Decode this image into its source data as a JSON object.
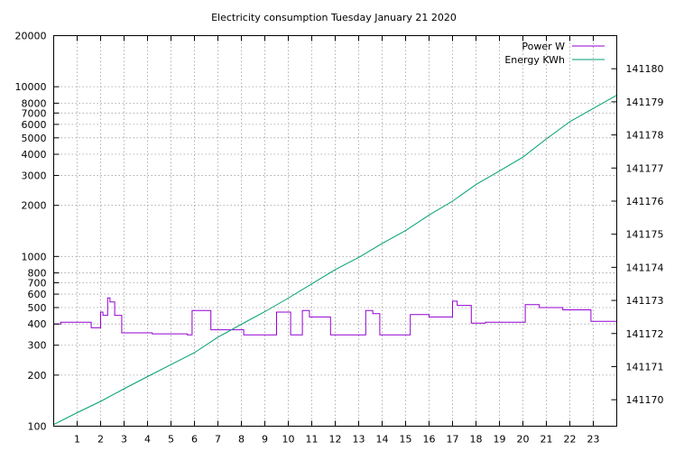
{
  "chart_data": {
    "type": "line",
    "title": "Electricity consumption Tuesday January 21 2020",
    "xlim": [
      0,
      24
    ],
    "x_ticks": [
      1,
      2,
      3,
      4,
      5,
      6,
      7,
      8,
      9,
      10,
      11,
      12,
      13,
      14,
      15,
      16,
      17,
      18,
      19,
      20,
      21,
      22,
      23
    ],
    "y_left": {
      "scale": "log",
      "range": [
        100,
        20000
      ],
      "ticks": [
        100,
        200,
        300,
        400,
        500,
        600,
        700,
        800,
        1000,
        2000,
        3000,
        4000,
        5000,
        6000,
        7000,
        8000,
        10000,
        20000
      ]
    },
    "y_right": {
      "scale": "linear",
      "range": [
        141169.2,
        141181.0
      ],
      "ticks": [
        141170,
        141171,
        141172,
        141173,
        141174,
        141175,
        141176,
        141177,
        141178,
        141179,
        141180
      ]
    },
    "grid": true,
    "legend_position": "top-right",
    "series": [
      {
        "name": "Power W",
        "axis": "left",
        "color": "#9400d3",
        "step": true,
        "x": [
          0,
          0.3,
          1.6,
          2.0,
          2.1,
          2.3,
          2.4,
          2.6,
          2.9,
          4.2,
          5.7,
          5.9,
          6.7,
          8.1,
          9.5,
          10.1,
          10.6,
          10.9,
          11.8,
          12.2,
          13.3,
          13.6,
          13.9,
          15.2,
          16.0,
          17.0,
          17.2,
          17.8,
          18.4,
          20.1,
          20.7,
          21.7,
          22.9,
          24.0
        ],
        "values": [
          400,
          410,
          380,
          470,
          450,
          570,
          540,
          450,
          355,
          350,
          345,
          480,
          370,
          345,
          470,
          345,
          480,
          440,
          345,
          345,
          480,
          460,
          345,
          455,
          440,
          545,
          515,
          405,
          410,
          520,
          500,
          485,
          415,
          415
        ]
      },
      {
        "name": "Energy KWh",
        "axis": "right",
        "color": "#009e73",
        "step": false,
        "x": [
          0,
          1,
          2,
          3,
          4,
          5,
          6,
          7,
          8,
          9,
          10,
          11,
          12,
          13,
          14,
          15,
          16,
          17,
          18,
          19,
          20,
          21,
          22,
          23,
          24
        ],
        "values": [
          141169.25,
          141169.61,
          141169.95,
          141170.33,
          141170.7,
          141171.06,
          141171.42,
          141171.89,
          141172.28,
          141172.66,
          141173.07,
          141173.5,
          141173.93,
          141174.3,
          141174.72,
          141175.11,
          141175.58,
          141176.0,
          141176.5,
          141176.91,
          141177.33,
          141177.88,
          141178.4,
          141178.8,
          141179.2
        ]
      }
    ]
  }
}
